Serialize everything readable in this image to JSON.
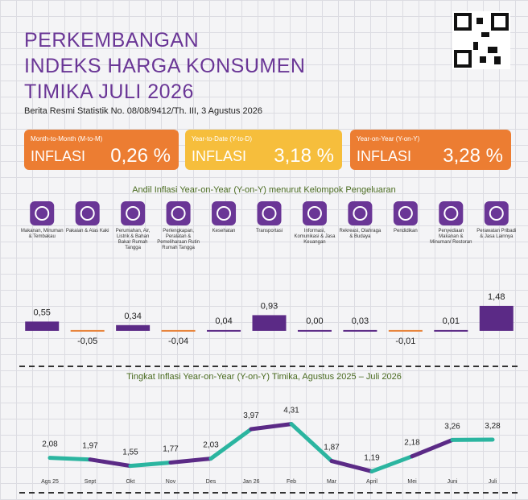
{
  "header": {
    "title_lines": [
      "PERKEMBANGAN",
      "INDEKS HARGA KONSUMEN",
      "TIMIKA JULI 2026"
    ],
    "subtitle": "Berita Resmi Statistik No. 08/08/9412/Th. III, 3 Agustus 2026"
  },
  "cards": [
    {
      "period": "Month-to-Month (M-to-M)",
      "label": "INFLASI",
      "value": "0,26 %"
    },
    {
      "period": "Year-to-Date (Y-to-D)",
      "label": "INFLASI",
      "value": "3,18 %"
    },
    {
      "period": "Year-on-Year (Y-on-Y)",
      "label": "INFLASI",
      "value": "3,28 %"
    }
  ],
  "chart_data": [
    {
      "type": "bar",
      "title": "Andil Inflasi Year-on-Year (Y-on-Y) menurut Kelompok Pengeluaran",
      "categories": [
        "Makanan, Minuman & Tembakau",
        "Pakaian & Alas Kaki",
        "Perumahan, Air, Listrik & Bahan Bakar Rumah Tangga",
        "Perlengkapan, Peralatan & Pemeliharaan Rutin Rumah Tangga",
        "Kesehatan",
        "Transportasi",
        "Informasi, Komunikasi & Jasa Keuangan",
        "Rekreasi, Olahraga & Budaya",
        "Pendidikan",
        "Penyediaan Makanan & Minuman/ Restoran",
        "Perawatan Pribadi & Jasa Lainnya"
      ],
      "values": [
        0.55,
        -0.05,
        0.34,
        -0.04,
        0.04,
        0.93,
        0.0,
        0.03,
        -0.01,
        0.01,
        1.48
      ],
      "value_labels": [
        "0,55",
        "-0,05",
        "0,34",
        "-0,04",
        "0,04",
        "0,93",
        "0,00",
        "0,03",
        "-0,01",
        "0,01",
        "1,48"
      ],
      "color": "#5b2a86",
      "negative_color": "#e8833a",
      "ylim": [
        -0.1,
        1.5
      ]
    },
    {
      "type": "line",
      "title": "Tingkat Inflasi Year-on-Year (Y-on-Y) Timika, Agustus 2025 – Juli 2026",
      "categories": [
        "Ags 25",
        "Sept",
        "Okt",
        "Nov",
        "Des",
        "Jan 26",
        "Feb",
        "Mar",
        "April",
        "Mei",
        "Juni",
        "Juli"
      ],
      "values": [
        2.08,
        1.97,
        1.55,
        1.77,
        2.03,
        3.97,
        4.31,
        1.87,
        1.19,
        2.18,
        3.26,
        3.28
      ],
      "value_labels": [
        "2,08",
        "1,97",
        "1,55",
        "1,77",
        "2,03",
        "3,97",
        "4,31",
        "1,87",
        "1,19",
        "2,18",
        "3,26",
        "3,28"
      ],
      "colors": [
        "#2bb5a0",
        "#5b2a86"
      ],
      "ylim": [
        1,
        4.5
      ]
    }
  ]
}
